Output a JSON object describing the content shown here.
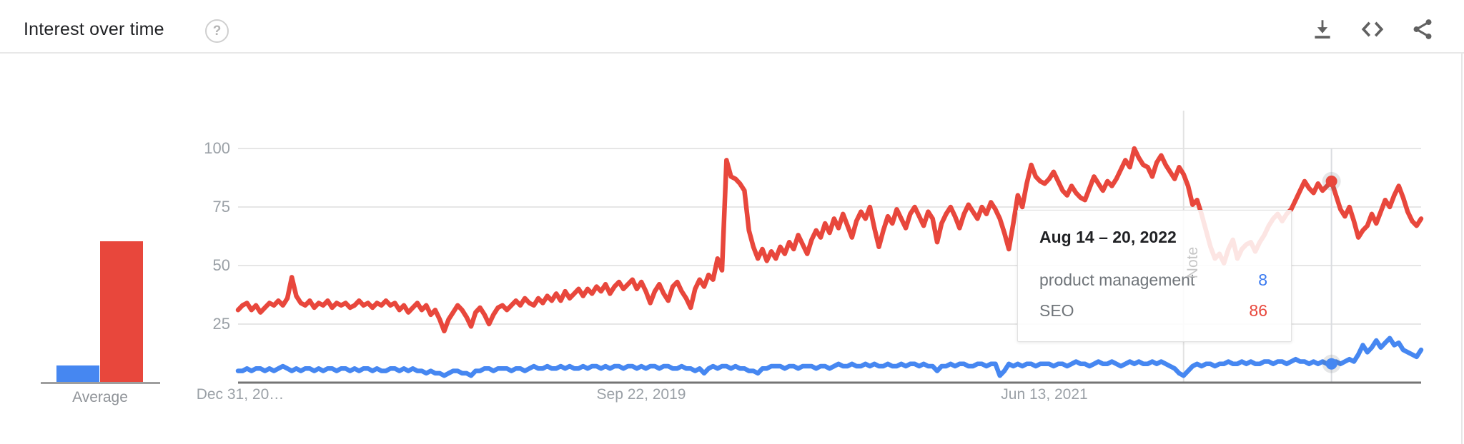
{
  "header": {
    "title": "Interest over time",
    "help_glyph": "?"
  },
  "average": {
    "label": "Average",
    "bars": [
      {
        "name": "product management",
        "value": 7,
        "color": "#4687f1"
      },
      {
        "name": "SEO",
        "value": 60,
        "color": "#e8473c"
      }
    ]
  },
  "chart_data": {
    "type": "line",
    "title": "Interest over time",
    "x_axis": {
      "tick_labels": [
        "Dec 31, 20…",
        "Sep 22, 2019",
        "Jun 13, 2021"
      ],
      "tick_weeks": [
        0,
        90,
        180
      ],
      "total_weeks": 264
    },
    "y_axis": {
      "tick_labels": [
        "25",
        "50",
        "75",
        "100"
      ],
      "tick_values": [
        25,
        50,
        75,
        100
      ],
      "range": [
        0,
        100
      ],
      "grid": true
    },
    "legend_position": "tooltip-only",
    "series": [
      {
        "name": "product management",
        "color": "#4687f1",
        "average": 7,
        "values": [
          5,
          5,
          6,
          5,
          6,
          6,
          5,
          6,
          5,
          6,
          7,
          6,
          5,
          6,
          5,
          6,
          6,
          5,
          6,
          5,
          6,
          6,
          5,
          6,
          6,
          5,
          6,
          5,
          6,
          6,
          5,
          6,
          5,
          5,
          6,
          6,
          5,
          6,
          5,
          6,
          5,
          5,
          4,
          5,
          4,
          4,
          3,
          4,
          5,
          5,
          4,
          4,
          3,
          5,
          5,
          6,
          6,
          5,
          6,
          6,
          6,
          5,
          6,
          6,
          5,
          6,
          7,
          6,
          6,
          7,
          6,
          6,
          7,
          6,
          7,
          6,
          6,
          7,
          6,
          7,
          7,
          6,
          7,
          6,
          7,
          7,
          6,
          7,
          7,
          6,
          7,
          6,
          7,
          7,
          6,
          7,
          7,
          6,
          6,
          7,
          6,
          6,
          5,
          6,
          4,
          6,
          7,
          6,
          7,
          7,
          6,
          7,
          6,
          6,
          5,
          5,
          4,
          6,
          6,
          7,
          7,
          7,
          6,
          7,
          7,
          6,
          7,
          7,
          7,
          6,
          7,
          7,
          6,
          7,
          8,
          7,
          7,
          8,
          7,
          7,
          8,
          7,
          8,
          7,
          7,
          8,
          7,
          7,
          8,
          7,
          8,
          8,
          7,
          8,
          7,
          7,
          5,
          7,
          7,
          8,
          7,
          8,
          8,
          7,
          7,
          8,
          8,
          7,
          8,
          8,
          3,
          5,
          8,
          7,
          8,
          7,
          8,
          8,
          7,
          8,
          8,
          8,
          7,
          8,
          8,
          7,
          8,
          9,
          8,
          8,
          7,
          8,
          9,
          8,
          8,
          9,
          8,
          7,
          8,
          9,
          8,
          9,
          8,
          8,
          9,
          8,
          9,
          8,
          7,
          6,
          4,
          3,
          5,
          7,
          8,
          7,
          8,
          8,
          7,
          8,
          8,
          9,
          8,
          8,
          9,
          8,
          9,
          8,
          8,
          9,
          9,
          8,
          9,
          9,
          8,
          9,
          10,
          9,
          9,
          8,
          9,
          8,
          9,
          8,
          8,
          9,
          8,
          9,
          10,
          9,
          12,
          16,
          13,
          15,
          18,
          15,
          17,
          19,
          16,
          17,
          14,
          13,
          12,
          11,
          14
        ]
      },
      {
        "name": "SEO",
        "color": "#e8473c",
        "average": 60,
        "values": [
          31,
          33,
          34,
          31,
          33,
          30,
          32,
          34,
          33,
          35,
          33,
          36,
          45,
          37,
          34,
          33,
          35,
          32,
          34,
          33,
          35,
          32,
          34,
          33,
          34,
          32,
          33,
          35,
          33,
          34,
          32,
          34,
          33,
          35,
          33,
          34,
          31,
          33,
          30,
          32,
          34,
          31,
          33,
          29,
          31,
          27,
          22,
          27,
          30,
          33,
          31,
          28,
          24,
          30,
          32,
          29,
          25,
          29,
          32,
          33,
          31,
          33,
          35,
          33,
          36,
          34,
          33,
          36,
          34,
          37,
          35,
          38,
          35,
          39,
          36,
          38,
          40,
          37,
          40,
          38,
          41,
          39,
          42,
          38,
          41,
          43,
          40,
          42,
          44,
          40,
          43,
          39,
          34,
          39,
          42,
          38,
          35,
          41,
          43,
          39,
          36,
          32,
          40,
          44,
          41,
          46,
          44,
          53,
          48,
          95,
          88,
          87,
          85,
          82,
          65,
          58,
          53,
          57,
          52,
          56,
          53,
          58,
          55,
          60,
          57,
          63,
          59,
          55,
          61,
          65,
          62,
          68,
          64,
          70,
          66,
          72,
          67,
          62,
          69,
          73,
          70,
          75,
          66,
          58,
          65,
          71,
          68,
          74,
          70,
          66,
          72,
          75,
          71,
          67,
          73,
          70,
          60,
          68,
          72,
          75,
          71,
          66,
          72,
          76,
          73,
          70,
          75,
          72,
          77,
          74,
          70,
          64,
          57,
          68,
          80,
          75,
          85,
          93,
          88,
          86,
          85,
          87,
          90,
          86,
          82,
          80,
          84,
          81,
          79,
          78,
          83,
          88,
          85,
          82,
          86,
          84,
          87,
          91,
          95,
          92,
          100,
          96,
          93,
          92,
          88,
          94,
          97,
          93,
          90,
          87,
          92,
          89,
          84,
          76,
          78,
          72,
          65,
          58,
          53,
          55,
          51,
          57,
          61,
          53,
          57,
          59,
          60,
          56,
          60,
          63,
          67,
          70,
          72,
          69,
          72,
          74,
          78,
          82,
          86,
          83,
          81,
          85,
          82,
          84,
          86,
          80,
          74,
          71,
          75,
          69,
          62,
          65,
          67,
          72,
          68,
          73,
          78,
          75,
          80,
          84,
          79,
          73,
          69,
          67,
          70
        ]
      }
    ],
    "note_marker": {
      "label": "Note",
      "week": 211
    },
    "hover": {
      "week": 244,
      "title": "Aug 14 – 20, 2022",
      "rows": [
        {
          "label": "product management",
          "value": "8",
          "color": "#3a7af0"
        },
        {
          "label": "SEO",
          "value": "86",
          "color": "#e8473c"
        }
      ]
    }
  }
}
